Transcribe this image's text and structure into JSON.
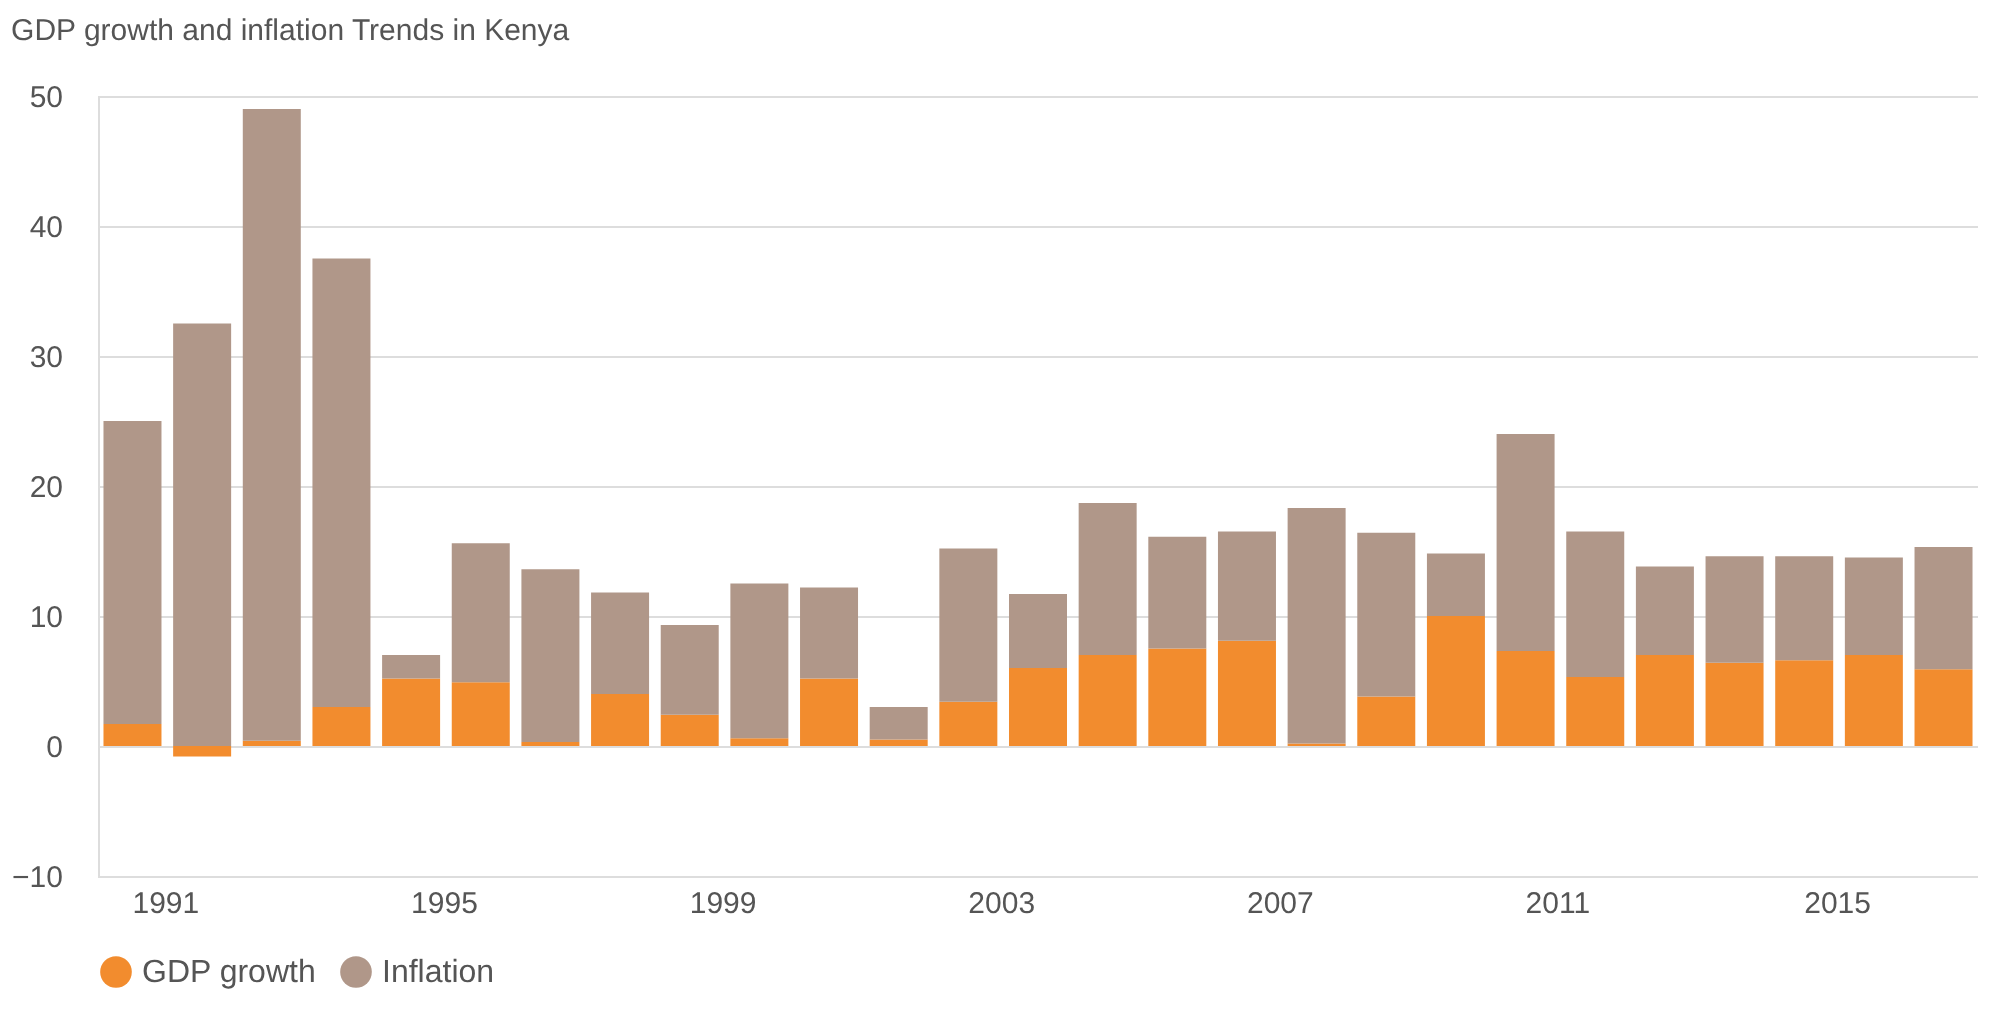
{
  "chart_data": {
    "type": "bar",
    "title": "GDP growth and inflation Trends in Kenya",
    "stacked": true,
    "categories": [
      "1991",
      null,
      null,
      null,
      "1995",
      null,
      null,
      null,
      "1999",
      null,
      null,
      null,
      "2003",
      null,
      null,
      null,
      "2007",
      null,
      null,
      null,
      "2011",
      null,
      null,
      null,
      "2015",
      null,
      null
    ],
    "series": [
      {
        "name": "GDP growth",
        "color": "#f28c2e",
        "values": [
          1.7,
          -0.8,
          0.4,
          3.0,
          5.2,
          4.9,
          0.3,
          4.0,
          2.4,
          0.6,
          5.2,
          0.5,
          3.4,
          6.0,
          7.0,
          7.5,
          8.1,
          0.2,
          3.8,
          10.0,
          7.3,
          5.3,
          7.0,
          6.4,
          6.6,
          7.0,
          5.9
        ]
      },
      {
        "name": "Inflation",
        "color": "#b09789",
        "values": [
          23.3,
          32.5,
          48.6,
          34.5,
          1.8,
          10.7,
          13.3,
          7.8,
          6.9,
          11.9,
          7.0,
          2.5,
          11.8,
          5.7,
          11.7,
          8.6,
          8.4,
          18.1,
          12.6,
          4.8,
          16.7,
          11.2,
          6.8,
          8.2,
          8.0,
          7.5,
          9.4
        ]
      }
    ],
    "ylim": [
      -10,
      50
    ],
    "yticks": [
      -10,
      0,
      10,
      20,
      30,
      40,
      50
    ],
    "grid": "y",
    "legend": "bottom"
  }
}
